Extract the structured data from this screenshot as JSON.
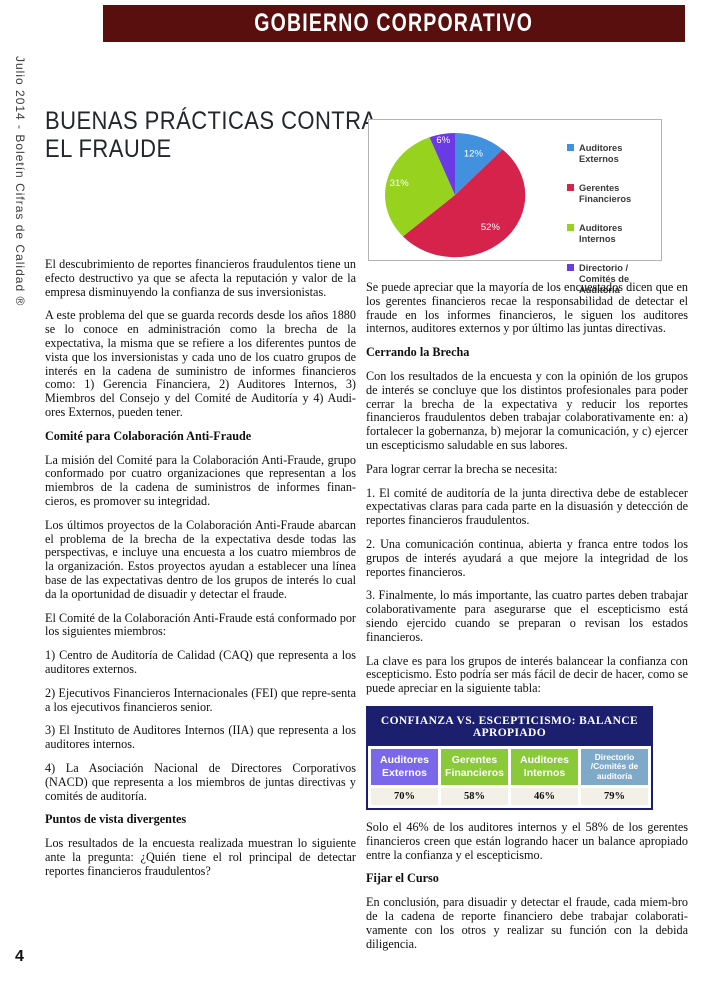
{
  "masthead": {
    "banner": "GOBIERNO CORPORATIVO",
    "sidebar_text": "Julio 2014 - Boletín Cifras de Calidad  ®"
  },
  "article": {
    "title_line1": "BUENAS PRÁCTICAS CONTRA",
    "title_line2": "EL FRAUDE"
  },
  "colors": {
    "banner_bg": "#5A0F0F",
    "table_header_bg": "#1B1F6E",
    "value_row_bg": "#F3F0E7"
  },
  "chart_data": {
    "type": "pie",
    "title": "",
    "labels": [
      "Auditores Externos",
      "Gerentes Financieros",
      "Auditores Internos",
      "Directorio / Comités de Auditoría"
    ],
    "values": [
      12,
      52,
      31,
      6
    ],
    "value_labels": [
      "12%",
      "52%",
      "31%",
      "6%"
    ],
    "colors": [
      "#4191DF",
      "#D6234B",
      "#97D21E",
      "#6A3BE4"
    ],
    "label_color": "#ffffff",
    "legend_position": "right"
  },
  "left_column": {
    "blocks": [
      {
        "type": "para",
        "text": "El descubrimiento de reportes financieros fraudulentos tiene un efecto destructivo ya que se afecta la reputación y valor de la empresa disminuyendo la confianza de sus inversionistas."
      },
      {
        "type": "para",
        "text": "A este problema del que se guarda records desde los años 1880 se lo conoce en administración como la brecha de la expectativa, la misma que se refiere a los diferentes puntos de vista que los inversionistas y cada uno de los cuatro grupos de interés en la cadena de suministro de informes financieros como: 1) Gerencia Financiera, 2) Auditores Internos, 3) Miembros del Consejo y del Comité de Auditoría y 4) Audi-ores Externos, pueden tener."
      },
      {
        "type": "heading",
        "text": "Comité para Colaboración Anti-Fraude"
      },
      {
        "type": "para",
        "text": "La misión del Comité para la Colaboración Anti-Fraude, grupo conformado por cuatro organizaciones que representan a los miembros de la cadena de suministros de informes finan-cieros, es promover su integridad."
      },
      {
        "type": "para",
        "text": "Los últimos proyectos de la Colaboración Anti-Fraude abarcan el problema de la brecha de la expectativa desde todas las perspectivas, e incluye una encuesta a los cuatro miembros de la organización. Estos proyectos ayudan a establecer una línea base de las expectativas dentro de los grupos de interés lo cual da la oportunidad de disuadir y detectar el fraude."
      },
      {
        "type": "para",
        "text": "El Comité de la Colaboración Anti-Fraude está conformado por los siguientes miembros:"
      },
      {
        "type": "para",
        "text": "1) Centro de Auditoría de Calidad (CAQ) que representa a los auditores externos."
      },
      {
        "type": "para",
        "text": "2) Ejecutivos Financieros Internacionales (FEI) que repre-senta a los ejecutivos financieros senior."
      },
      {
        "type": "para",
        "text": "3) El Instituto de Auditores Internos (IIA) que representa a los auditores internos."
      },
      {
        "type": "para",
        "text": "4) La Asociación Nacional de Directores Corporativos (NACD) que representa a los miembros de juntas directivas y comités de auditoría."
      },
      {
        "type": "heading",
        "text": "Puntos de vista divergentes"
      },
      {
        "type": "para",
        "text": "Los resultados de la encuesta realizada muestran lo siguiente ante la pregunta: ¿Quién tiene el rol principal de detectar reportes financieros fraudulentos?"
      }
    ]
  },
  "right_column": {
    "blocks_top": [
      {
        "type": "para",
        "text": "Se puede apreciar que la mayoría de los encuestados dicen que en los gerentes financieros recae la responsabilidad de detectar el fraude en los informes financieros, le siguen los auditores internos, auditores externos y por último las juntas directivas."
      },
      {
        "type": "heading",
        "text": "Cerrando la Brecha"
      },
      {
        "type": "para",
        "text": "Con los resultados de la encuesta y con la opinión de los grupos de interés se concluye que los distintos profesionales para poder cerrar la brecha de la expectativa y reducir los reportes financieros fraudulentos deben trabajar colaborativamente en: a) fortalecer la gobernanza, b) mejorar la comunicación, y c) ejercer un escepticismo saludable en sus labores."
      },
      {
        "type": "para",
        "text": "Para lograr cerrar la brecha se necesita:"
      },
      {
        "type": "para",
        "text": "1. El comité de auditoría de la junta directiva debe de establecer expectativas claras para cada parte en la disuasión y detección de reportes financieros fraudulentos."
      },
      {
        "type": "para",
        "text": "2. Una comunicación continua, abierta y franca entre todos los grupos de interés ayudará a que mejore la integridad de los reportes financieros."
      },
      {
        "type": "para",
        "text": "3. Finalmente, lo más importante, las cuatro partes deben trabajar colaborativamente para asegurarse que el escepticismo está siendo ejercido cuando se preparan o revisan los estados financieros."
      },
      {
        "type": "para",
        "text": "La clave es para los grupos de interés balancear la confianza con escepticismo. Esto podría ser más fácil de decir de hacer, como se puede apreciar en la siguiente tabla:"
      }
    ],
    "table": {
      "title": "CONFIANZA VS. ESCEPTICISMO: BALANCE APROPIADO",
      "columns": [
        {
          "label": "Auditores Externos",
          "value": "70%",
          "color": "#7A67EA"
        },
        {
          "label": "Gerentes Financieros",
          "value": "58%",
          "color": "#8AC93A"
        },
        {
          "label": "Auditores Internos",
          "value": "46%",
          "color": "#8AC93A"
        },
        {
          "label": "Directorio /Comités de auditoría",
          "value": "79%",
          "color": "#7FA9C9",
          "size_class": "small"
        }
      ]
    },
    "blocks_bottom": [
      {
        "type": "para",
        "text": "Solo el 46% de los auditores internos y el 58% de los gerentes financieros creen que están logrando hacer un balance apropiado entre la confianza y el escepticismo."
      },
      {
        "type": "heading",
        "text": "Fijar el Curso"
      },
      {
        "type": "para",
        "text": "En conclusión, para disuadir y detectar el fraude, cada miem-bro de la cadena de reporte financiero debe trabajar colaborati-vamente con los otros y realizar su función con la debida diligencia."
      }
    ]
  },
  "footer": {
    "page_number": "4"
  }
}
